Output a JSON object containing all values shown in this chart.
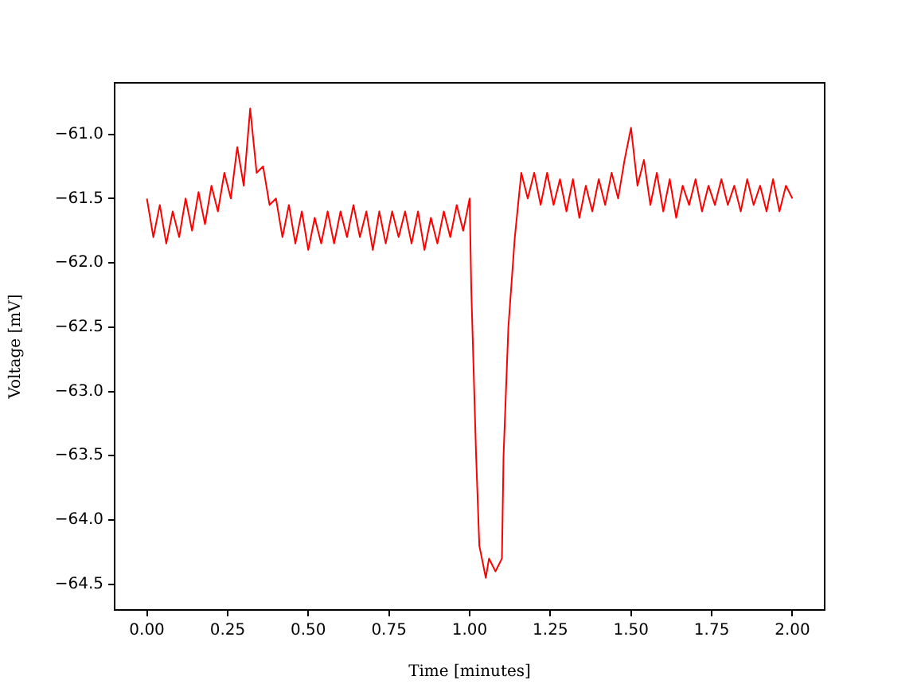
{
  "chart_data": {
    "type": "line",
    "xlabel": "Time [minutes]",
    "ylabel": "Voltage [mV]",
    "xlim": [
      -0.1,
      2.1
    ],
    "ylim": [
      -64.7,
      -60.6
    ],
    "xticks": [
      {
        "value": 0,
        "label": "0.00"
      },
      {
        "value": 0.25,
        "label": "0.25"
      },
      {
        "value": 0.5,
        "label": "0.50"
      },
      {
        "value": 0.75,
        "label": "0.75"
      },
      {
        "value": 1,
        "label": "1.00"
      },
      {
        "value": 1.25,
        "label": "1.25"
      },
      {
        "value": 1.5,
        "label": "1.50"
      },
      {
        "value": 1.75,
        "label": "1.75"
      },
      {
        "value": 2,
        "label": "2.00"
      }
    ],
    "yticks": [
      {
        "value": -64.5,
        "label": "−64.5"
      },
      {
        "value": -64,
        "label": "−64.0"
      },
      {
        "value": -63.5,
        "label": "−63.5"
      },
      {
        "value": -63,
        "label": "−63.0"
      },
      {
        "value": -62.5,
        "label": "−62.5"
      },
      {
        "value": -62,
        "label": "−62.0"
      },
      {
        "value": -61.5,
        "label": "−61.5"
      },
      {
        "value": -61,
        "label": "−61.0"
      }
    ],
    "grid": false,
    "legend": false,
    "marker": "none",
    "line_style": "solid",
    "x": [
      0,
      0.02,
      0.04,
      0.06,
      0.08,
      0.1,
      0.12,
      0.14,
      0.16,
      0.18,
      0.2,
      0.22,
      0.24,
      0.26,
      0.28,
      0.3,
      0.32,
      0.34,
      0.36,
      0.38,
      0.4,
      0.42,
      0.44,
      0.46,
      0.48,
      0.5,
      0.52,
      0.54,
      0.56,
      0.58,
      0.6,
      0.62,
      0.64,
      0.66,
      0.68,
      0.7,
      0.72,
      0.74,
      0.76,
      0.78,
      0.8,
      0.82,
      0.84,
      0.86,
      0.88,
      0.9,
      0.92,
      0.94,
      0.96,
      0.98,
      1,
      1.005,
      1.02,
      1.03,
      1.05,
      1.06,
      1.08,
      1.1,
      1.105,
      1.12,
      1.14,
      1.16,
      1.18,
      1.2,
      1.22,
      1.24,
      1.26,
      1.28,
      1.3,
      1.32,
      1.34,
      1.36,
      1.38,
      1.4,
      1.42,
      1.44,
      1.46,
      1.48,
      1.5,
      1.52,
      1.54,
      1.56,
      1.58,
      1.6,
      1.62,
      1.64,
      1.66,
      1.68,
      1.7,
      1.72,
      1.74,
      1.76,
      1.78,
      1.8,
      1.82,
      1.84,
      1.86,
      1.88,
      1.9,
      1.92,
      1.94,
      1.96,
      1.98,
      2
    ],
    "series": [
      {
        "color": "#ff0000",
        "values": [
          -61.5,
          -61.8,
          -61.55,
          -61.85,
          -61.6,
          -61.8,
          -61.5,
          -61.75,
          -61.45,
          -61.7,
          -61.4,
          -61.6,
          -61.3,
          -61.5,
          -61.1,
          -61.4,
          -60.8,
          -61.3,
          -61.25,
          -61.55,
          -61.5,
          -61.8,
          -61.55,
          -61.85,
          -61.6,
          -61.9,
          -61.65,
          -61.85,
          -61.6,
          -61.85,
          -61.6,
          -61.8,
          -61.55,
          -61.8,
          -61.6,
          -61.9,
          -61.6,
          -61.85,
          -61.6,
          -61.8,
          -61.6,
          -61.85,
          -61.6,
          -61.9,
          -61.65,
          -61.85,
          -61.6,
          -61.8,
          -61.55,
          -61.75,
          -61.5,
          -62.2,
          -63.5,
          -64.2,
          -64.45,
          -64.3,
          -64.4,
          -64.3,
          -63.5,
          -62.5,
          -61.8,
          -61.3,
          -61.5,
          -61.3,
          -61.55,
          -61.3,
          -61.55,
          -61.35,
          -61.6,
          -61.35,
          -61.65,
          -61.4,
          -61.6,
          -61.35,
          -61.55,
          -61.3,
          -61.5,
          -61.2,
          -60.95,
          -61.4,
          -61.2,
          -61.55,
          -61.3,
          -61.6,
          -61.35,
          -61.65,
          -61.4,
          -61.55,
          -61.35,
          -61.6,
          -61.4,
          -61.55,
          -61.35,
          -61.55,
          -61.4,
          -61.6,
          -61.35,
          -61.55,
          -61.4,
          -61.6,
          -61.35,
          -61.6,
          -61.4,
          -61.5
        ]
      }
    ]
  }
}
